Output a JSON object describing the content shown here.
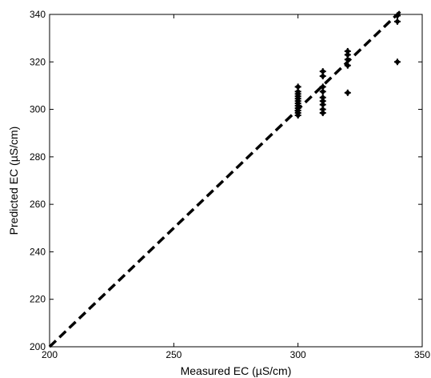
{
  "chart_data": {
    "type": "scatter",
    "xlabel": "Measured EC (µS/cm)",
    "ylabel": "Predicted EC (µS/cm)",
    "xlim": [
      200,
      350
    ],
    "ylim": [
      200,
      340
    ],
    "x_ticks": [
      200,
      250,
      300,
      350
    ],
    "y_ticks": [
      200,
      220,
      240,
      260,
      280,
      300,
      320,
      340
    ],
    "grid": false,
    "marker_color": "#000000",
    "series": [
      {
        "points": [
          [
            300,
            297.5
          ],
          [
            300,
            298.5
          ],
          [
            300,
            299.5
          ],
          [
            300,
            300.5
          ],
          [
            300,
            301.5
          ],
          [
            300,
            302.5
          ],
          [
            300,
            303.5
          ],
          [
            300,
            304.5
          ],
          [
            300,
            305.5
          ],
          [
            300,
            306.5
          ],
          [
            300,
            307.5
          ],
          [
            300,
            309.5
          ],
          [
            310,
            298.5
          ],
          [
            310,
            300
          ],
          [
            310,
            302
          ],
          [
            310,
            303.5
          ],
          [
            310,
            305
          ],
          [
            310,
            307.5
          ],
          [
            310,
            309.5
          ],
          [
            310,
            314
          ],
          [
            310,
            316
          ],
          [
            320,
            307
          ],
          [
            320,
            318.5
          ],
          [
            320,
            321
          ],
          [
            320,
            323
          ],
          [
            320,
            324.5
          ],
          [
            340,
            320
          ],
          [
            340,
            337
          ],
          [
            340,
            339.5
          ]
        ]
      }
    ],
    "reference_line": {
      "style": "dashed",
      "color": "#000000",
      "from": [
        200,
        200
      ],
      "to": [
        340,
        340
      ]
    }
  }
}
